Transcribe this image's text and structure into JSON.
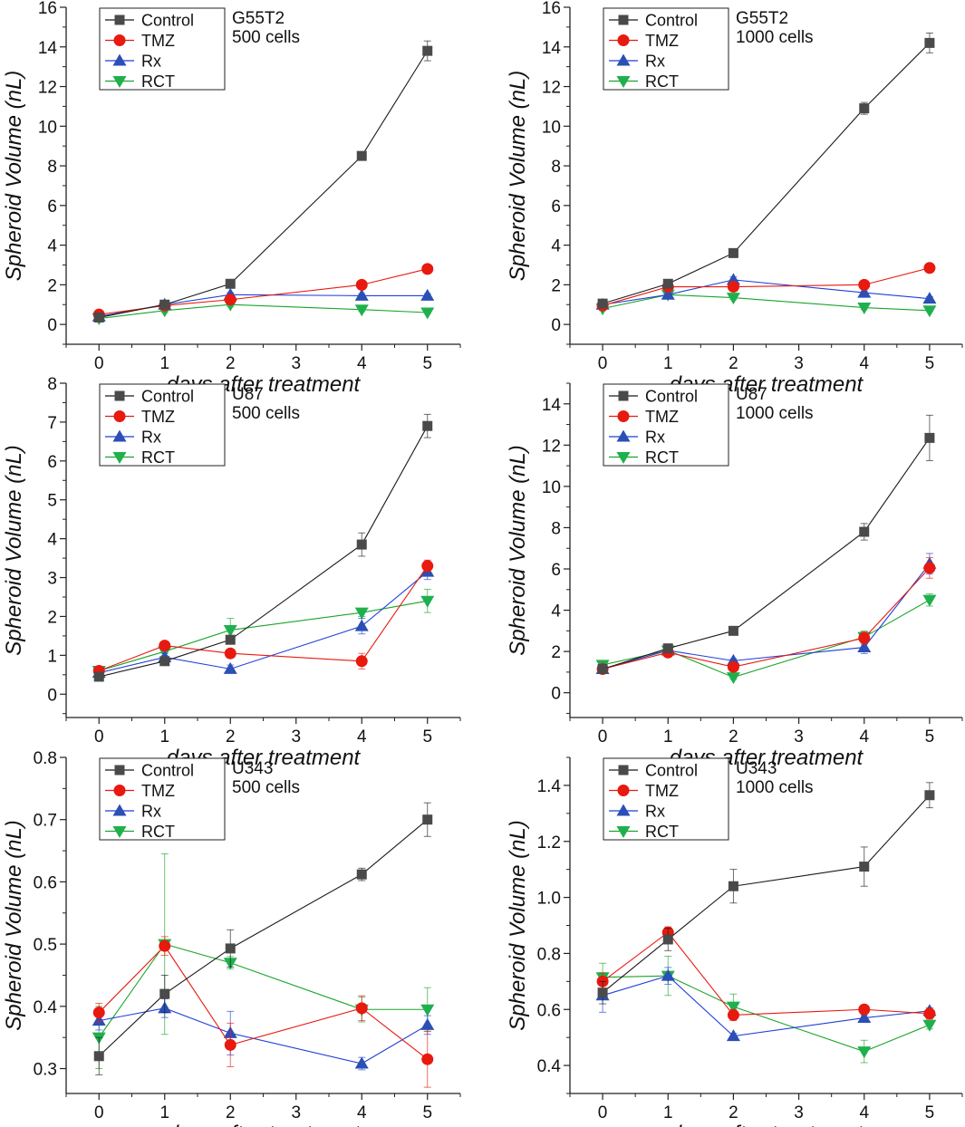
{
  "chart_data": [
    {
      "type": "line",
      "annotation": [
        "G55T2",
        "500 cells"
      ],
      "xlabel": "days after treatment",
      "ylabel": "Spheroid Volume (nL)",
      "xlim": [
        -0.5,
        5.5
      ],
      "ylim": [
        -1,
        16
      ],
      "xticks": [
        "0",
        "1",
        "2",
        "3",
        "4",
        "5"
      ],
      "yticks": [
        "0",
        "2",
        "4",
        "6",
        "8",
        "10",
        "12",
        "14",
        "16"
      ],
      "series": [
        {
          "name": "Control",
          "x": [
            0,
            1,
            2,
            4,
            5
          ],
          "values": [
            0.35,
            1.0,
            2.05,
            8.5,
            13.8
          ],
          "err": [
            0.05,
            0.1,
            0.1,
            0.15,
            0.5
          ]
        },
        {
          "name": "TMZ",
          "x": [
            0,
            1,
            2,
            4,
            5
          ],
          "values": [
            0.5,
            0.95,
            1.25,
            2.0,
            2.8
          ],
          "err": [
            0.05,
            0.1,
            0.1,
            0.2,
            0.15
          ]
        },
        {
          "name": "Rx",
          "x": [
            0,
            1,
            2,
            4,
            5
          ],
          "values": [
            0.4,
            1.0,
            1.5,
            1.45,
            1.45
          ],
          "err": [
            0.05,
            0.1,
            0.1,
            0.1,
            0.1
          ]
        },
        {
          "name": "RCT",
          "x": [
            0,
            1,
            2,
            4,
            5
          ],
          "values": [
            0.3,
            0.7,
            1.0,
            0.75,
            0.6
          ],
          "err": [
            0.05,
            0.1,
            0.1,
            0.1,
            0.05
          ]
        }
      ]
    },
    {
      "type": "line",
      "annotation": [
        "G55T2",
        "1000 cells"
      ],
      "xlabel": "days after treatment",
      "ylabel": "Spheroid Volume (nL)",
      "xlim": [
        -0.5,
        5.5
      ],
      "ylim": [
        -1,
        16
      ],
      "xticks": [
        "0",
        "1",
        "2",
        "3",
        "4",
        "5"
      ],
      "yticks": [
        "0",
        "2",
        "4",
        "6",
        "8",
        "10",
        "12",
        "14",
        "16"
      ],
      "series": [
        {
          "name": "Control",
          "x": [
            0,
            1,
            2,
            4,
            5
          ],
          "values": [
            1.05,
            2.05,
            3.6,
            10.9,
            14.2
          ],
          "err": [
            0.1,
            0.15,
            0.15,
            0.3,
            0.5
          ]
        },
        {
          "name": "TMZ",
          "x": [
            0,
            1,
            2,
            4,
            5
          ],
          "values": [
            0.95,
            1.9,
            1.9,
            2.0,
            2.85
          ],
          "err": [
            0.1,
            0.15,
            0.1,
            0.1,
            0.1
          ]
        },
        {
          "name": "Rx",
          "x": [
            0,
            1,
            2,
            4,
            5
          ],
          "values": [
            1.0,
            1.5,
            2.25,
            1.6,
            1.3
          ],
          "err": [
            0.1,
            0.1,
            0.15,
            0.1,
            0.1
          ]
        },
        {
          "name": "RCT",
          "x": [
            0,
            1,
            2,
            4,
            5
          ],
          "values": [
            0.8,
            1.5,
            1.35,
            0.85,
            0.7
          ],
          "err": [
            0.1,
            0.1,
            0.1,
            0.1,
            0.05
          ]
        }
      ]
    },
    {
      "type": "line",
      "annotation": [
        "U87",
        "500 cells"
      ],
      "xlabel": "days after treatment",
      "ylabel": "Spheroid Volume (nL)",
      "xlim": [
        -0.5,
        5.5
      ],
      "ylim": [
        -0.6,
        8
      ],
      "xticks": [
        "0",
        "1",
        "2",
        "3",
        "4",
        "5"
      ],
      "yticks": [
        "0",
        "1",
        "2",
        "3",
        "4",
        "5",
        "6",
        "7",
        "8"
      ],
      "series": [
        {
          "name": "Control",
          "x": [
            0,
            1,
            2,
            4,
            5
          ],
          "values": [
            0.45,
            0.85,
            1.4,
            3.85,
            6.9
          ],
          "err": [
            0.05,
            0.1,
            0.1,
            0.3,
            0.3
          ]
        },
        {
          "name": "TMZ",
          "x": [
            0,
            1,
            2,
            4,
            5
          ],
          "values": [
            0.6,
            1.25,
            1.05,
            0.85,
            3.3
          ],
          "err": [
            0.05,
            0.1,
            0.1,
            0.2,
            0.15
          ]
        },
        {
          "name": "Rx",
          "x": [
            0,
            1,
            2,
            4,
            5
          ],
          "values": [
            0.55,
            0.95,
            0.65,
            1.75,
            3.15
          ],
          "err": [
            0.05,
            0.1,
            0.1,
            0.2,
            0.2
          ]
        },
        {
          "name": "RCT",
          "x": [
            0,
            1,
            2,
            4,
            5
          ],
          "values": [
            0.6,
            1.1,
            1.65,
            2.1,
            2.4
          ],
          "err": [
            0.05,
            0.1,
            0.3,
            0.1,
            0.3
          ]
        }
      ]
    },
    {
      "type": "line",
      "annotation": [
        "U87",
        "1000 cells"
      ],
      "xlabel": "days after treatment",
      "ylabel": "Spheroid Volume (nL)",
      "xlim": [
        -0.5,
        5.5
      ],
      "ylim": [
        -1.2,
        15
      ],
      "xticks": [
        "0",
        "1",
        "2",
        "3",
        "4",
        "5"
      ],
      "yticks": [
        "0",
        "2",
        "4",
        "6",
        "8",
        "10",
        "12",
        "14"
      ],
      "series": [
        {
          "name": "Control",
          "x": [
            0,
            1,
            2,
            4,
            5
          ],
          "values": [
            1.15,
            2.15,
            3.0,
            7.8,
            12.35
          ],
          "err": [
            0.1,
            0.15,
            0.1,
            0.4,
            1.1
          ]
        },
        {
          "name": "TMZ",
          "x": [
            0,
            1,
            2,
            4,
            5
          ],
          "values": [
            1.15,
            1.95,
            1.25,
            2.65,
            6.05
          ],
          "err": [
            0.1,
            0.1,
            0.1,
            0.3,
            0.5
          ]
        },
        {
          "name": "Rx",
          "x": [
            0,
            1,
            2,
            4,
            5
          ],
          "values": [
            1.15,
            2.05,
            1.55,
            2.2,
            6.25
          ],
          "err": [
            0.1,
            0.15,
            0.1,
            0.3,
            0.5
          ]
        },
        {
          "name": "RCT",
          "x": [
            0,
            1,
            2,
            4,
            5
          ],
          "values": [
            1.35,
            2.05,
            0.75,
            2.7,
            4.5
          ],
          "err": [
            0.1,
            0.1,
            0.1,
            0.3,
            0.3
          ]
        }
      ]
    },
    {
      "type": "line",
      "annotation": [
        "U343",
        "500 cells"
      ],
      "xlabel": "days after treatment",
      "ylabel": "Spheroid Volume (nL)",
      "xlim": [
        -0.5,
        5.5
      ],
      "ylim": [
        0.26,
        0.8
      ],
      "xticks": [
        "0",
        "1",
        "2",
        "3",
        "4",
        "5"
      ],
      "yticks": [
        "0.3",
        "0.4",
        "0.5",
        "0.6",
        "0.7",
        "0.8"
      ],
      "series": [
        {
          "name": "Control",
          "x": [
            0,
            1,
            2,
            4,
            5
          ],
          "values": [
            0.32,
            0.42,
            0.493,
            0.612,
            0.7
          ],
          "err": [
            0.03,
            0.03,
            0.03,
            0.01,
            0.027
          ]
        },
        {
          "name": "TMZ",
          "x": [
            0,
            1,
            2,
            4,
            5
          ],
          "values": [
            0.39,
            0.497,
            0.338,
            0.397,
            0.315
          ],
          "err": [
            0.015,
            0.015,
            0.035,
            0.02,
            0.045
          ]
        },
        {
          "name": "Rx",
          "x": [
            0,
            1,
            2,
            4,
            5
          ],
          "values": [
            0.377,
            0.397,
            0.357,
            0.308,
            0.37
          ],
          "err": [
            0.015,
            0.015,
            0.035,
            0.01,
            0.015
          ]
        },
        {
          "name": "RCT",
          "x": [
            0,
            1,
            2,
            4,
            5
          ],
          "values": [
            0.35,
            0.5,
            0.47,
            0.395,
            0.395
          ],
          "err": [
            0.05,
            0.145,
            0.01,
            0.02,
            0.035
          ]
        }
      ]
    },
    {
      "type": "line",
      "annotation": [
        "U343",
        "1000 cells"
      ],
      "xlabel": "days after treatment",
      "ylabel": "Spheroid Volume (nL)",
      "xlim": [
        -0.5,
        5.5
      ],
      "ylim": [
        0.3,
        1.5
      ],
      "xticks": [
        "0",
        "1",
        "2",
        "3",
        "4",
        "5"
      ],
      "yticks": [
        "0.4",
        "0.6",
        "0.8",
        "1.0",
        "1.2",
        "1.4"
      ],
      "series": [
        {
          "name": "Control",
          "x": [
            0,
            1,
            2,
            4,
            5
          ],
          "values": [
            0.66,
            0.85,
            1.04,
            1.11,
            1.365
          ],
          "err": [
            0.04,
            0.04,
            0.06,
            0.07,
            0.045
          ]
        },
        {
          "name": "TMZ",
          "x": [
            0,
            1,
            2,
            4,
            5
          ],
          "values": [
            0.7,
            0.875,
            0.58,
            0.6,
            0.585
          ],
          "err": [
            0.03,
            0.02,
            0.02,
            0.01,
            0.02
          ]
        },
        {
          "name": "Rx",
          "x": [
            0,
            1,
            2,
            4,
            5
          ],
          "values": [
            0.65,
            0.72,
            0.505,
            0.57,
            0.595
          ],
          "err": [
            0.06,
            0.03,
            0.01,
            0.01,
            0.01
          ]
        },
        {
          "name": "RCT",
          "x": [
            0,
            1,
            2,
            4,
            5
          ],
          "values": [
            0.715,
            0.72,
            0.61,
            0.45,
            0.545
          ],
          "err": [
            0.05,
            0.07,
            0.045,
            0.04,
            0.015
          ]
        }
      ]
    }
  ],
  "styles": {
    "Control": {
      "color": "#1a1a1a",
      "marker_fill": "#4a4a4a",
      "marker": "square"
    },
    "TMZ": {
      "color": "#e8190f",
      "marker_fill": "#e8190f",
      "marker": "circle"
    },
    "Rx": {
      "color": "#1f3fd8",
      "marker_fill": "#2b4fb5",
      "marker": "triangle-up"
    },
    "RCT": {
      "color": "#1aa52a",
      "marker_fill": "#1fb04e",
      "marker": "triangle-down"
    }
  }
}
